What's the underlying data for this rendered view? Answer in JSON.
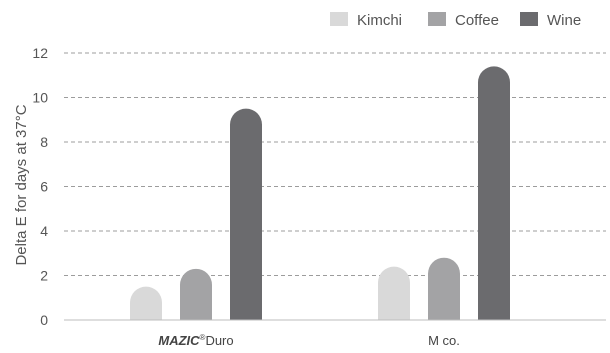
{
  "chart_data": {
    "type": "bar",
    "categories": [
      "MAZIC®Duro",
      "M co."
    ],
    "category_parts": [
      {
        "brand": "MAZIC",
        "reg": "®",
        "suffix": "Duro"
      },
      {
        "brand": "",
        "reg": "",
        "suffix": "M co."
      }
    ],
    "series": [
      {
        "name": "Kimchi",
        "color": "#d9d9d9",
        "values": [
          1.5,
          2.4
        ]
      },
      {
        "name": "Coffee",
        "color": "#a3a3a5",
        "values": [
          2.3,
          2.8
        ]
      },
      {
        "name": "Wine",
        "color": "#6b6b6e",
        "values": [
          9.5,
          11.4
        ]
      }
    ],
    "ylabel": "Delta E for days at 37°C",
    "xlabel": "",
    "title": "",
    "ylim": [
      0,
      12
    ],
    "yticks": [
      0,
      2,
      4,
      6,
      8,
      10,
      12
    ],
    "grid": true,
    "grid_style": "dashed",
    "legend_position": "top-right"
  }
}
